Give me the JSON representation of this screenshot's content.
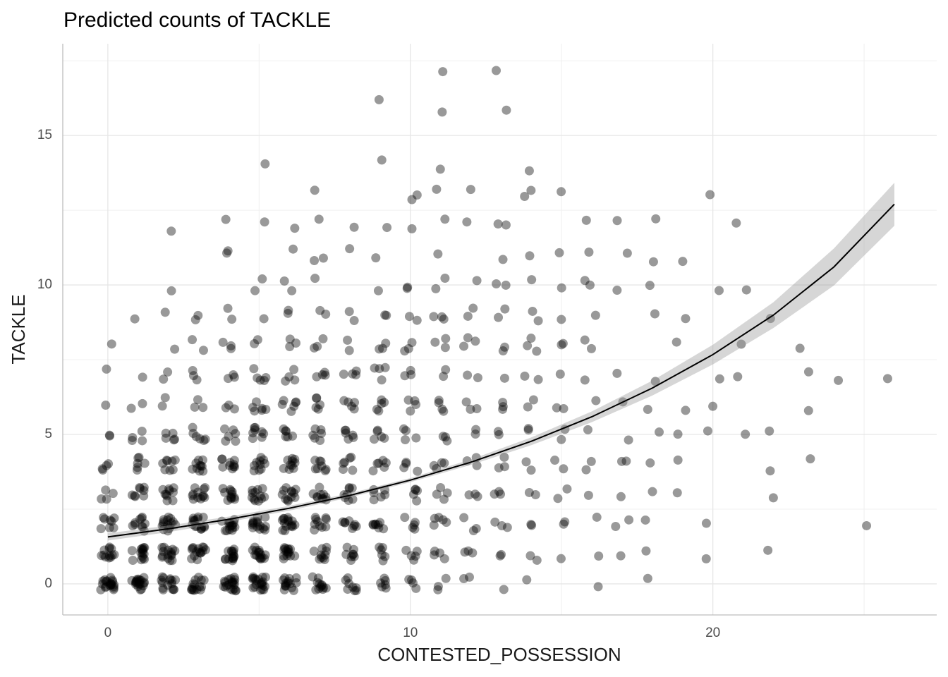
{
  "chart_data": {
    "type": "scatter",
    "title": "Predicted counts of TACKLE",
    "x_label": "CONTESTED_POSSESSION",
    "y_label": "TACKLE",
    "xlim": [
      -1.49,
      27.4
    ],
    "ylim": [
      -1.04,
      18.07
    ],
    "xticks": [
      0,
      10,
      20
    ],
    "yticks": [
      0,
      5,
      10,
      15
    ],
    "xminorticks": [
      5,
      15,
      25
    ],
    "yminorticks": [
      2.5,
      7.5,
      12.5,
      17.5
    ],
    "grid": true,
    "point_color": "#000000",
    "points": [
      [
        0,
        0,
        20
      ],
      [
        1,
        0,
        20
      ],
      [
        2,
        0,
        15
      ],
      [
        3,
        0,
        15
      ],
      [
        4,
        0,
        20
      ],
      [
        5,
        0,
        20
      ],
      [
        6,
        0,
        15
      ],
      [
        7,
        0,
        12
      ],
      [
        8,
        0,
        8
      ],
      [
        9,
        0,
        6
      ],
      [
        10,
        0,
        4
      ],
      [
        11,
        0,
        3
      ],
      [
        12,
        0,
        2
      ],
      [
        13,
        0,
        1
      ],
      [
        14,
        0,
        1
      ],
      [
        16,
        0,
        1
      ],
      [
        18,
        0,
        1
      ],
      [
        0,
        1,
        12
      ],
      [
        1,
        1,
        15
      ],
      [
        2,
        1,
        15
      ],
      [
        3,
        1,
        15
      ],
      [
        4,
        1,
        15
      ],
      [
        5,
        1,
        15
      ],
      [
        6,
        1,
        15
      ],
      [
        7,
        1,
        10
      ],
      [
        8,
        1,
        8
      ],
      [
        9,
        1,
        6
      ],
      [
        10,
        1,
        5
      ],
      [
        11,
        1,
        4
      ],
      [
        12,
        1,
        3
      ],
      [
        13,
        1,
        2
      ],
      [
        14,
        1,
        2
      ],
      [
        15,
        1,
        1
      ],
      [
        16,
        1,
        1
      ],
      [
        17,
        1,
        1
      ],
      [
        18,
        1,
        1
      ],
      [
        20,
        1,
        1
      ],
      [
        22,
        1,
        1
      ],
      [
        0,
        2,
        8
      ],
      [
        1,
        2,
        10
      ],
      [
        2,
        2,
        15
      ],
      [
        3,
        2,
        15
      ],
      [
        4,
        2,
        15
      ],
      [
        5,
        2,
        15
      ],
      [
        6,
        2,
        15
      ],
      [
        7,
        2,
        10
      ],
      [
        8,
        2,
        8
      ],
      [
        9,
        2,
        8
      ],
      [
        10,
        2,
        5
      ],
      [
        11,
        2,
        5
      ],
      [
        12,
        2,
        3
      ],
      [
        13,
        2,
        3
      ],
      [
        14,
        2,
        2
      ],
      [
        15,
        2,
        2
      ],
      [
        16,
        2,
        1
      ],
      [
        17,
        2,
        2
      ],
      [
        18,
        2,
        1
      ],
      [
        20,
        2,
        1
      ],
      [
        25,
        2,
        1
      ],
      [
        0,
        3,
        4
      ],
      [
        1,
        3,
        8
      ],
      [
        2,
        3,
        10
      ],
      [
        3,
        3,
        12
      ],
      [
        4,
        3,
        12
      ],
      [
        5,
        3,
        12
      ],
      [
        6,
        3,
        12
      ],
      [
        7,
        3,
        10
      ],
      [
        8,
        3,
        8
      ],
      [
        9,
        3,
        6
      ],
      [
        10,
        3,
        5
      ],
      [
        11,
        3,
        4
      ],
      [
        12,
        3,
        3
      ],
      [
        13,
        3,
        3
      ],
      [
        14,
        3,
        2
      ],
      [
        15,
        3,
        2
      ],
      [
        16,
        3,
        1
      ],
      [
        17,
        3,
        1
      ],
      [
        18,
        3,
        1
      ],
      [
        19,
        3,
        1
      ],
      [
        22,
        3,
        1
      ],
      [
        0,
        4,
        4
      ],
      [
        1,
        4,
        6
      ],
      [
        2,
        4,
        8
      ],
      [
        3,
        4,
        10
      ],
      [
        4,
        4,
        10
      ],
      [
        5,
        4,
        10
      ],
      [
        6,
        4,
        10
      ],
      [
        7,
        4,
        8
      ],
      [
        8,
        4,
        6
      ],
      [
        9,
        4,
        6
      ],
      [
        10,
        4,
        4
      ],
      [
        11,
        4,
        4
      ],
      [
        12,
        4,
        3
      ],
      [
        13,
        4,
        3
      ],
      [
        14,
        4,
        2
      ],
      [
        15,
        4,
        2
      ],
      [
        16,
        4,
        2
      ],
      [
        17,
        4,
        2
      ],
      [
        18,
        4,
        1
      ],
      [
        19,
        4,
        1
      ],
      [
        22,
        4,
        1
      ],
      [
        23,
        4,
        1
      ],
      [
        0,
        5,
        2
      ],
      [
        1,
        5,
        4
      ],
      [
        2,
        5,
        5
      ],
      [
        3,
        5,
        6
      ],
      [
        4,
        5,
        6
      ],
      [
        5,
        5,
        8
      ],
      [
        6,
        5,
        6
      ],
      [
        7,
        5,
        6
      ],
      [
        8,
        5,
        6
      ],
      [
        9,
        5,
        5
      ],
      [
        10,
        5,
        4
      ],
      [
        11,
        5,
        3
      ],
      [
        12,
        5,
        2
      ],
      [
        13,
        5,
        2
      ],
      [
        14,
        5,
        2
      ],
      [
        15,
        5,
        2
      ],
      [
        16,
        5,
        1
      ],
      [
        17,
        5,
        1
      ],
      [
        18,
        5,
        1
      ],
      [
        19,
        5,
        1
      ],
      [
        20,
        5,
        1
      ],
      [
        21,
        5,
        1
      ],
      [
        22,
        5,
        1
      ],
      [
        0,
        6,
        1
      ],
      [
        1,
        6,
        2
      ],
      [
        2,
        6,
        2
      ],
      [
        3,
        6,
        3
      ],
      [
        4,
        6,
        3
      ],
      [
        5,
        6,
        6
      ],
      [
        6,
        6,
        6
      ],
      [
        7,
        6,
        5
      ],
      [
        8,
        6,
        5
      ],
      [
        9,
        6,
        5
      ],
      [
        10,
        6,
        4
      ],
      [
        11,
        6,
        4
      ],
      [
        12,
        6,
        3
      ],
      [
        13,
        6,
        3
      ],
      [
        14,
        6,
        2
      ],
      [
        15,
        6,
        2
      ],
      [
        16,
        6,
        1
      ],
      [
        17,
        6,
        1
      ],
      [
        18,
        6,
        1
      ],
      [
        19,
        6,
        1
      ],
      [
        20,
        6,
        1
      ],
      [
        23,
        6,
        1
      ],
      [
        0,
        7,
        1
      ],
      [
        1,
        7,
        1
      ],
      [
        2,
        7,
        2
      ],
      [
        3,
        7,
        3
      ],
      [
        4,
        7,
        3
      ],
      [
        5,
        7,
        5
      ],
      [
        6,
        7,
        4
      ],
      [
        7,
        7,
        4
      ],
      [
        8,
        7,
        4
      ],
      [
        9,
        7,
        4
      ],
      [
        10,
        7,
        3
      ],
      [
        11,
        7,
        2
      ],
      [
        12,
        7,
        2
      ],
      [
        13,
        7,
        1
      ],
      [
        14,
        7,
        2
      ],
      [
        15,
        7,
        1
      ],
      [
        16,
        7,
        1
      ],
      [
        17,
        7,
        1
      ],
      [
        18,
        7,
        1
      ],
      [
        20,
        7,
        1
      ],
      [
        21,
        7,
        1
      ],
      [
        23,
        7,
        1
      ],
      [
        24,
        7,
        1
      ],
      [
        26,
        7,
        1
      ],
      [
        0,
        8,
        1
      ],
      [
        2,
        8,
        1
      ],
      [
        3,
        8,
        2
      ],
      [
        4,
        8,
        3
      ],
      [
        5,
        8,
        2
      ],
      [
        6,
        8,
        3
      ],
      [
        7,
        8,
        3
      ],
      [
        8,
        8,
        2
      ],
      [
        9,
        8,
        3
      ],
      [
        10,
        8,
        3
      ],
      [
        11,
        8,
        3
      ],
      [
        12,
        8,
        3
      ],
      [
        13,
        8,
        2
      ],
      [
        14,
        8,
        3
      ],
      [
        15,
        8,
        2
      ],
      [
        16,
        8,
        2
      ],
      [
        19,
        8,
        1
      ],
      [
        21,
        8,
        1
      ],
      [
        23,
        8,
        1
      ],
      [
        1,
        9,
        1
      ],
      [
        2,
        9,
        1
      ],
      [
        3,
        9,
        2
      ],
      [
        4,
        9,
        2
      ],
      [
        5,
        9,
        1
      ],
      [
        6,
        9,
        2
      ],
      [
        7,
        9,
        2
      ],
      [
        8,
        9,
        2
      ],
      [
        9,
        9,
        2
      ],
      [
        10,
        9,
        2
      ],
      [
        11,
        9,
        3
      ],
      [
        12,
        9,
        2
      ],
      [
        13,
        9,
        2
      ],
      [
        14,
        9,
        2
      ],
      [
        15,
        9,
        1
      ],
      [
        16,
        9,
        1
      ],
      [
        18,
        9,
        1
      ],
      [
        19,
        9,
        1
      ],
      [
        22,
        9,
        1
      ],
      [
        2,
        10,
        1
      ],
      [
        5,
        10,
        2
      ],
      [
        6,
        10,
        2
      ],
      [
        7,
        10,
        1
      ],
      [
        9,
        10,
        1
      ],
      [
        10,
        10,
        2
      ],
      [
        11,
        10,
        2
      ],
      [
        12,
        10,
        1
      ],
      [
        13,
        10,
        2
      ],
      [
        14,
        10,
        1
      ],
      [
        15,
        10,
        1
      ],
      [
        16,
        10,
        2
      ],
      [
        17,
        10,
        1
      ],
      [
        18,
        10,
        1
      ],
      [
        20,
        10,
        1
      ],
      [
        21,
        10,
        1
      ],
      [
        4,
        11,
        2
      ],
      [
        6,
        11,
        1
      ],
      [
        7,
        11,
        2
      ],
      [
        8,
        11,
        1
      ],
      [
        9,
        11,
        1
      ],
      [
        11,
        11,
        1
      ],
      [
        13,
        11,
        1
      ],
      [
        14,
        11,
        1
      ],
      [
        15,
        11,
        1
      ],
      [
        16,
        11,
        1
      ],
      [
        17,
        11,
        1
      ],
      [
        18,
        11,
        1
      ],
      [
        19,
        11,
        1
      ],
      [
        2,
        12,
        1
      ],
      [
        4,
        12,
        1
      ],
      [
        5,
        12,
        1
      ],
      [
        6,
        12,
        1
      ],
      [
        7,
        12,
        1
      ],
      [
        8,
        12,
        1
      ],
      [
        9,
        12,
        1
      ],
      [
        10,
        12,
        1
      ],
      [
        11,
        12,
        1
      ],
      [
        12,
        12,
        1
      ],
      [
        13,
        12,
        2
      ],
      [
        16,
        12,
        1
      ],
      [
        17,
        12,
        1
      ],
      [
        18,
        12,
        1
      ],
      [
        21,
        12,
        1
      ],
      [
        7,
        13,
        1
      ],
      [
        10,
        13,
        2
      ],
      [
        11,
        13,
        1
      ],
      [
        12,
        13,
        1
      ],
      [
        14,
        13,
        2
      ],
      [
        15,
        13,
        1
      ],
      [
        20,
        13,
        1
      ],
      [
        5,
        14,
        1
      ],
      [
        9,
        14,
        1
      ],
      [
        11,
        14,
        1
      ],
      [
        14,
        14,
        1
      ],
      [
        9,
        16,
        1
      ],
      [
        11,
        16,
        1
      ],
      [
        13,
        16,
        1
      ],
      [
        11,
        17,
        1
      ],
      [
        13,
        17,
        1
      ]
    ],
    "fit": {
      "color": "#000000",
      "band_color": "#999999",
      "x": [
        0,
        2,
        4,
        6,
        8,
        10,
        12,
        14,
        16,
        18,
        20,
        22,
        24,
        26
      ],
      "values": [
        1.57,
        1.84,
        2.16,
        2.53,
        2.96,
        3.47,
        4.07,
        4.77,
        5.59,
        6.55,
        7.67,
        8.99,
        10.6,
        12.7
      ],
      "lower": [
        1.45,
        1.73,
        2.07,
        2.45,
        2.89,
        3.4,
        3.98,
        4.64,
        5.41,
        6.3,
        7.34,
        8.56,
        9.98,
        11.98
      ],
      "upper": [
        1.69,
        1.95,
        2.25,
        2.61,
        3.03,
        3.54,
        4.16,
        4.9,
        5.77,
        6.8,
        8.0,
        9.42,
        11.22,
        13.42
      ]
    }
  }
}
